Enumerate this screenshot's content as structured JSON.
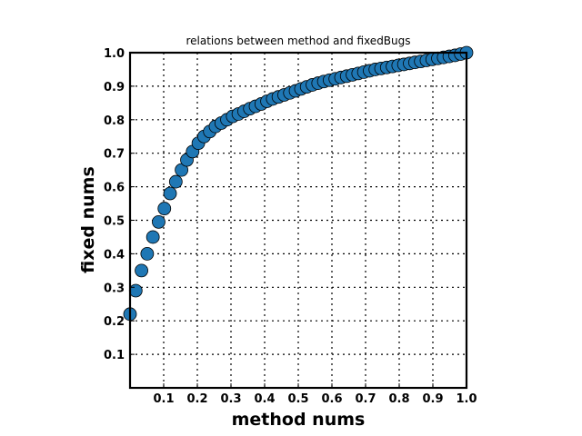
{
  "chart_data": {
    "type": "scatter",
    "title": "relations between method and fixedBugs",
    "xlabel": "method nums",
    "ylabel": "fixed nums",
    "xlim": [
      0.0,
      1.0
    ],
    "ylim": [
      0.0,
      1.0
    ],
    "xticks": [
      "0.1",
      "0.2",
      "0.3",
      "0.4",
      "0.5",
      "0.6",
      "0.7",
      "0.8",
      "0.9",
      "1.0"
    ],
    "yticks": [
      "0.1",
      "0.2",
      "0.3",
      "0.4",
      "0.5",
      "0.6",
      "0.7",
      "0.8",
      "0.9",
      "1.0"
    ],
    "grid": true,
    "marker_color": "#1f77b4",
    "points": {
      "x": [
        0.0,
        0.017,
        0.034,
        0.051,
        0.068,
        0.085,
        0.102,
        0.119,
        0.136,
        0.153,
        0.169,
        0.186,
        0.203,
        0.22,
        0.237,
        0.254,
        0.271,
        0.288,
        0.305,
        0.322,
        0.339,
        0.356,
        0.373,
        0.39,
        0.407,
        0.424,
        0.441,
        0.458,
        0.475,
        0.492,
        0.508,
        0.525,
        0.542,
        0.559,
        0.576,
        0.593,
        0.61,
        0.627,
        0.644,
        0.661,
        0.678,
        0.695,
        0.712,
        0.729,
        0.746,
        0.763,
        0.78,
        0.797,
        0.814,
        0.831,
        0.847,
        0.864,
        0.881,
        0.898,
        0.915,
        0.932,
        0.949,
        0.966,
        0.983,
        1.0
      ],
      "y": [
        0.22,
        0.29,
        0.35,
        0.4,
        0.45,
        0.495,
        0.535,
        0.58,
        0.615,
        0.65,
        0.68,
        0.705,
        0.73,
        0.75,
        0.765,
        0.78,
        0.79,
        0.8,
        0.81,
        0.817,
        0.825,
        0.833,
        0.84,
        0.847,
        0.855,
        0.862,
        0.868,
        0.874,
        0.88,
        0.886,
        0.892,
        0.898,
        0.904,
        0.909,
        0.914,
        0.918,
        0.922,
        0.926,
        0.93,
        0.934,
        0.938,
        0.942,
        0.946,
        0.95,
        0.953,
        0.956,
        0.959,
        0.962,
        0.965,
        0.968,
        0.971,
        0.974,
        0.977,
        0.98,
        0.983,
        0.986,
        0.989,
        0.992,
        0.996,
        1.0
      ]
    }
  }
}
